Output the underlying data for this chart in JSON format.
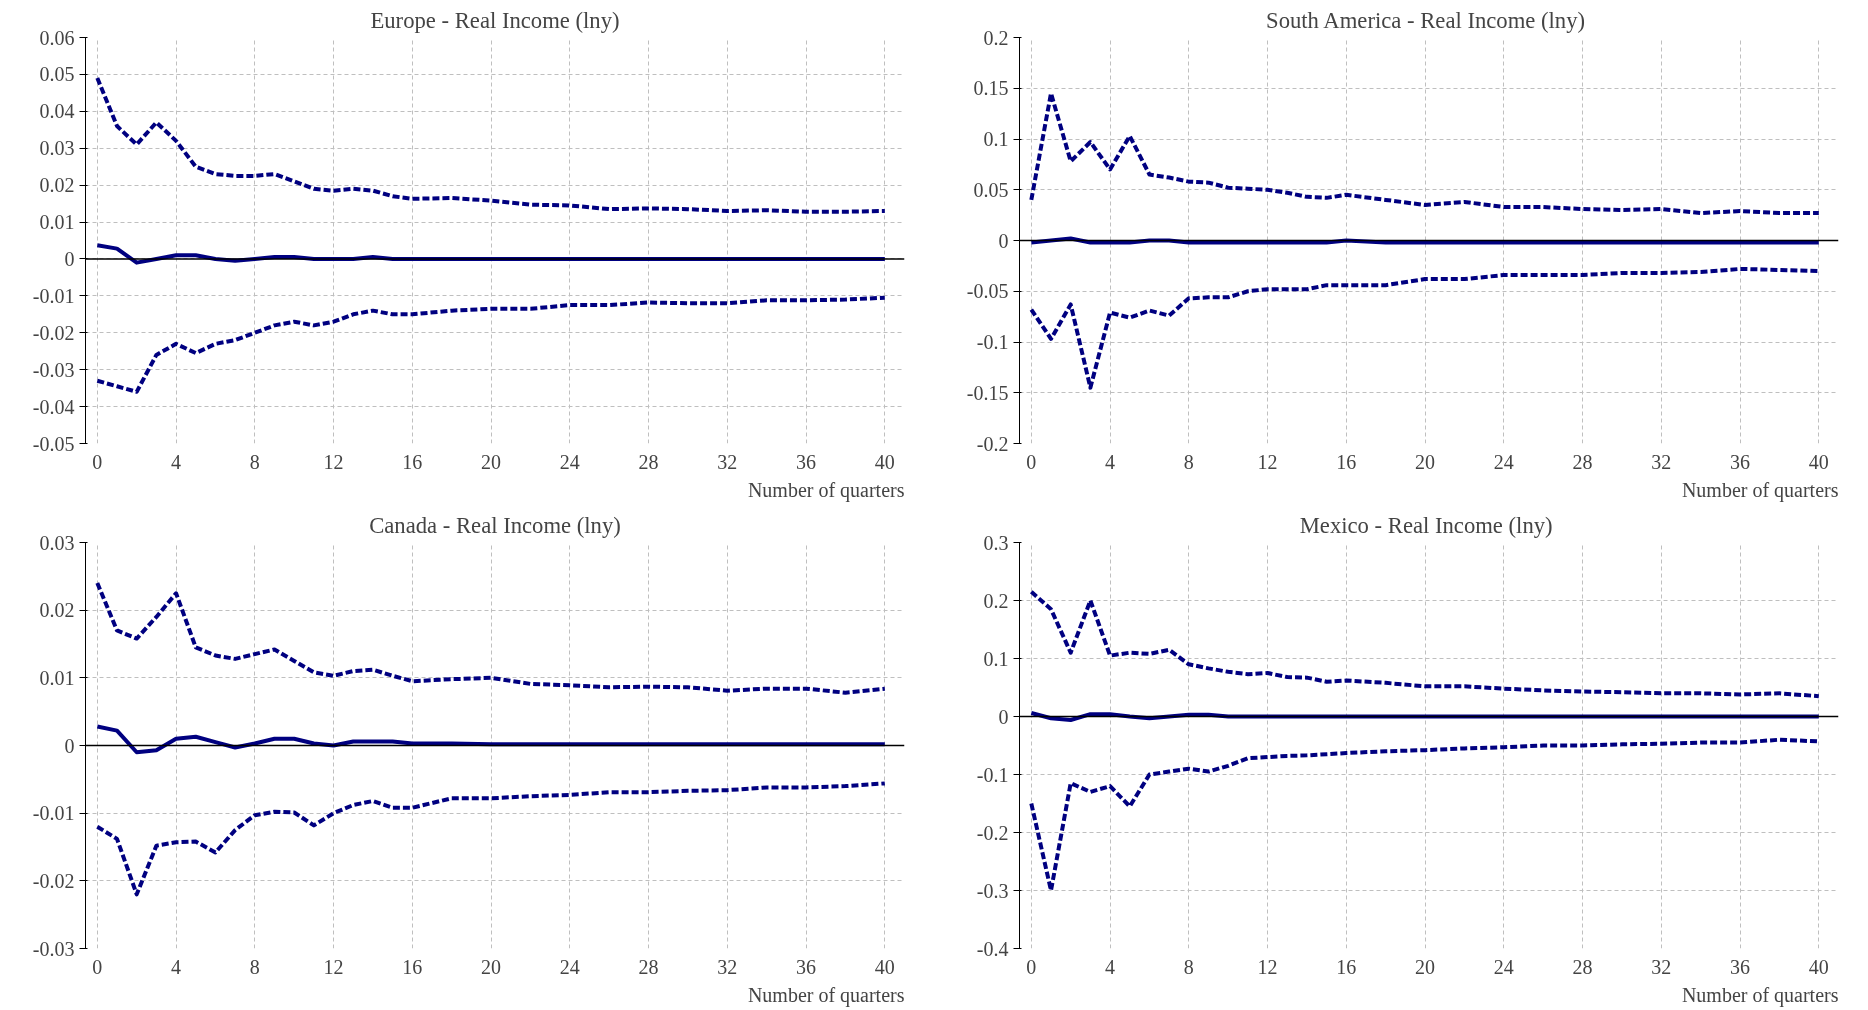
{
  "chart_data": [
    {
      "type": "line",
      "title": "Europe - Real Income (lny)",
      "xlabel": "Number of quarters",
      "x": [
        0,
        1,
        2,
        3,
        4,
        5,
        6,
        7,
        8,
        9,
        10,
        11,
        12,
        13,
        14,
        15,
        16,
        18,
        20,
        22,
        24,
        26,
        28,
        30,
        32,
        34,
        36,
        38,
        40
      ],
      "series": [
        {
          "line_style": "dashed",
          "color": "#000080",
          "values": [
            0.049,
            0.036,
            0.031,
            0.037,
            0.032,
            0.025,
            0.023,
            0.0225,
            0.0225,
            0.023,
            0.021,
            0.019,
            0.0185,
            0.019,
            0.0185,
            0.017,
            0.0163,
            0.0165,
            0.0158,
            0.0147,
            0.0145,
            0.0135,
            0.0137,
            0.0135,
            0.013,
            0.0132,
            0.0128,
            0.0128,
            0.013
          ]
        },
        {
          "line_style": "solid",
          "color": "#000080",
          "values": [
            0.0037,
            0.0028,
            -0.001,
            0,
            0.001,
            0.001,
            0,
            -0.0005,
            0,
            0.0005,
            0.0005,
            0,
            0,
            0,
            0.0005,
            0,
            0,
            0,
            0,
            0,
            0,
            0,
            0,
            0,
            0,
            0,
            0,
            0,
            0
          ]
        },
        {
          "line_style": "dashed",
          "color": "#000080",
          "values": [
            -0.033,
            -0.0345,
            -0.036,
            -0.026,
            -0.023,
            -0.0255,
            -0.023,
            -0.022,
            -0.02,
            -0.018,
            -0.017,
            -0.018,
            -0.017,
            -0.015,
            -0.014,
            -0.015,
            -0.015,
            -0.014,
            -0.0135,
            -0.0135,
            -0.0125,
            -0.0125,
            -0.0118,
            -0.012,
            -0.012,
            -0.0112,
            -0.0112,
            -0.011,
            -0.0105
          ]
        }
      ],
      "xlim": [
        -0.6,
        41
      ],
      "xticks": [
        0,
        4,
        8,
        12,
        16,
        20,
        24,
        28,
        32,
        36,
        40
      ],
      "ylim": [
        -0.05,
        0.06
      ],
      "yticks": [
        -0.05,
        -0.04,
        -0.03,
        -0.02,
        -0.01,
        0,
        0.01,
        0.02,
        0.03,
        0.04,
        0.05,
        0.06
      ],
      "ref_lines": [
        {
          "axis": "y",
          "value": 0,
          "color": "#000000"
        }
      ],
      "grid": true
    },
    {
      "type": "line",
      "title": "South America  - Real Income (lny)",
      "xlabel": "Number of quarters",
      "x": [
        0,
        1,
        2,
        3,
        4,
        5,
        6,
        7,
        8,
        9,
        10,
        11,
        12,
        13,
        14,
        15,
        16,
        18,
        20,
        22,
        24,
        26,
        28,
        30,
        32,
        34,
        36,
        38,
        40
      ],
      "series": [
        {
          "line_style": "dashed",
          "color": "#000080",
          "values": [
            0.04,
            0.145,
            0.078,
            0.097,
            0.07,
            0.103,
            0.065,
            0.062,
            0.058,
            0.057,
            0.052,
            0.051,
            0.05,
            0.047,
            0.043,
            0.042,
            0.045,
            0.04,
            0.035,
            0.038,
            0.033,
            0.033,
            0.031,
            0.03,
            0.031,
            0.027,
            0.029,
            0.027,
            0.027
          ]
        },
        {
          "line_style": "solid",
          "color": "#000080",
          "values": [
            -0.002,
            0,
            0.002,
            -0.002,
            -0.002,
            -0.002,
            0,
            0,
            -0.002,
            -0.002,
            -0.002,
            -0.002,
            -0.002,
            -0.002,
            -0.002,
            -0.002,
            0,
            -0.002,
            -0.002,
            -0.002,
            -0.002,
            -0.002,
            -0.002,
            -0.002,
            -0.002,
            -0.002,
            -0.002,
            -0.002,
            -0.002
          ]
        },
        {
          "line_style": "dashed",
          "color": "#000080",
          "values": [
            -0.068,
            -0.097,
            -0.063,
            -0.145,
            -0.071,
            -0.076,
            -0.069,
            -0.074,
            -0.057,
            -0.056,
            -0.056,
            -0.05,
            -0.048,
            -0.048,
            -0.048,
            -0.044,
            -0.044,
            -0.044,
            -0.038,
            -0.038,
            -0.034,
            -0.034,
            -0.034,
            -0.032,
            -0.032,
            -0.031,
            -0.028,
            -0.029,
            -0.03
          ]
        }
      ],
      "xlim": [
        -0.6,
        41
      ],
      "xticks": [
        0,
        4,
        8,
        12,
        16,
        20,
        24,
        28,
        32,
        36,
        40
      ],
      "ylim": [
        -0.2,
        0.2
      ],
      "yticks": [
        -0.2,
        -0.15,
        -0.1,
        -0.05,
        0,
        0.05,
        0.1,
        0.15,
        0.2
      ],
      "ref_lines": [
        {
          "axis": "y",
          "value": 0,
          "color": "#000000"
        }
      ],
      "grid": true
    },
    {
      "type": "line",
      "title": "Canada - Real Income (lny)",
      "xlabel": "Number of quarters",
      "x": [
        0,
        1,
        2,
        3,
        4,
        5,
        6,
        7,
        8,
        9,
        10,
        11,
        12,
        13,
        14,
        15,
        16,
        18,
        20,
        22,
        24,
        26,
        28,
        30,
        32,
        34,
        36,
        38,
        40
      ],
      "series": [
        {
          "line_style": "dashed",
          "color": "#000080",
          "values": [
            0.024,
            0.017,
            0.0158,
            0.019,
            0.0225,
            0.0145,
            0.0133,
            0.0128,
            0.0135,
            0.0142,
            0.0125,
            0.0108,
            0.0103,
            0.011,
            0.0112,
            0.0103,
            0.0095,
            0.0098,
            0.01,
            0.0091,
            0.0089,
            0.0086,
            0.0087,
            0.0086,
            0.0081,
            0.0084,
            0.0084,
            0.0078,
            0.0084
          ]
        },
        {
          "line_style": "solid",
          "color": "#000080",
          "values": [
            0.0028,
            0.0022,
            -0.001,
            -0.0007,
            0.001,
            0.0013,
            0.0005,
            -0.0003,
            0.0003,
            0.001,
            0.001,
            0.0003,
            0,
            0.0006,
            0.0006,
            0.0006,
            0.0003,
            0.0003,
            0.0002,
            0.0002,
            0.0002,
            0.0002,
            0.0002,
            0.0002,
            0.0002,
            0.0002,
            0.0002,
            0.0002,
            0.0002
          ]
        },
        {
          "line_style": "dashed",
          "color": "#000080",
          "values": [
            -0.012,
            -0.0138,
            -0.022,
            -0.0148,
            -0.0143,
            -0.0142,
            -0.0158,
            -0.0125,
            -0.0103,
            -0.0098,
            -0.0099,
            -0.0118,
            -0.01,
            -0.0088,
            -0.0082,
            -0.0092,
            -0.0092,
            -0.0078,
            -0.0078,
            -0.0075,
            -0.0073,
            -0.0069,
            -0.0069,
            -0.0067,
            -0.0066,
            -0.0062,
            -0.0062,
            -0.006,
            -0.0056
          ]
        }
      ],
      "xlim": [
        -0.6,
        41
      ],
      "xticks": [
        0,
        4,
        8,
        12,
        16,
        20,
        24,
        28,
        32,
        36,
        40
      ],
      "ylim": [
        -0.03,
        0.03
      ],
      "yticks": [
        -0.03,
        -0.02,
        -0.01,
        0,
        0.01,
        0.02,
        0.03
      ],
      "ref_lines": [
        {
          "axis": "y",
          "value": 0,
          "color": "#000000"
        }
      ],
      "grid": true
    },
    {
      "type": "line",
      "title": "Mexico  - Real Income (lny)",
      "xlabel": "Number of quarters",
      "x": [
        0,
        1,
        2,
        3,
        4,
        5,
        6,
        7,
        8,
        9,
        10,
        11,
        12,
        13,
        14,
        15,
        16,
        18,
        20,
        22,
        24,
        26,
        28,
        30,
        32,
        34,
        36,
        38,
        40
      ],
      "series": [
        {
          "line_style": "dashed",
          "color": "#000080",
          "values": [
            0.215,
            0.185,
            0.11,
            0.2,
            0.105,
            0.11,
            0.108,
            0.115,
            0.09,
            0.083,
            0.077,
            0.073,
            0.075,
            0.068,
            0.067,
            0.06,
            0.062,
            0.058,
            0.052,
            0.052,
            0.048,
            0.045,
            0.043,
            0.042,
            0.04,
            0.04,
            0.038,
            0.04,
            0.035
          ]
        },
        {
          "line_style": "solid",
          "color": "#000080",
          "values": [
            0.006,
            -0.003,
            -0.006,
            0.004,
            0.004,
            0,
            -0.003,
            0,
            0.003,
            0.003,
            0,
            0,
            0,
            0,
            0,
            0,
            0,
            0,
            0,
            0,
            0,
            0,
            0,
            0,
            0,
            0,
            0,
            0,
            0
          ]
        },
        {
          "line_style": "dashed",
          "color": "#000080",
          "values": [
            -0.15,
            -0.3,
            -0.115,
            -0.13,
            -0.12,
            -0.155,
            -0.1,
            -0.095,
            -0.09,
            -0.095,
            -0.085,
            -0.072,
            -0.07,
            -0.068,
            -0.067,
            -0.065,
            -0.063,
            -0.06,
            -0.058,
            -0.055,
            -0.053,
            -0.05,
            -0.05,
            -0.048,
            -0.047,
            -0.045,
            -0.045,
            -0.04,
            -0.043
          ]
        }
      ],
      "xlim": [
        -0.6,
        41
      ],
      "xticks": [
        0,
        4,
        8,
        12,
        16,
        20,
        24,
        28,
        32,
        36,
        40
      ],
      "ylim": [
        -0.4,
        0.3
      ],
      "yticks": [
        -0.4,
        -0.3,
        -0.2,
        -0.1,
        0,
        0.1,
        0.2,
        0.3
      ],
      "ref_lines": [
        {
          "axis": "y",
          "value": 0,
          "color": "#000000"
        }
      ],
      "grid": true
    }
  ]
}
